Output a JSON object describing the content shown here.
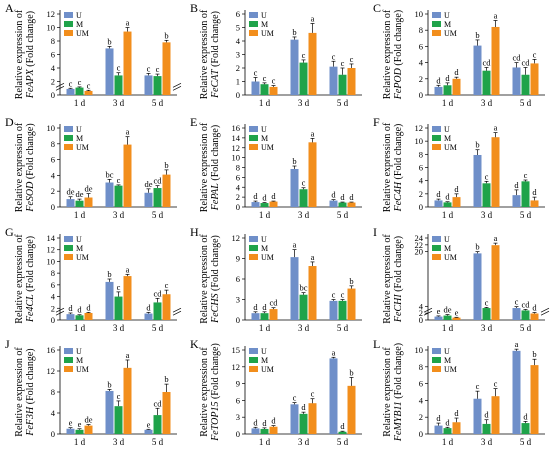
{
  "legend": [
    {
      "key": "U",
      "label": "U",
      "color": "#6f8fc9"
    },
    {
      "key": "M",
      "label": "M",
      "color": "#1fa34a"
    },
    {
      "key": "UM",
      "label": "UM",
      "color": "#f28e1c"
    }
  ],
  "chart_data": [
    {
      "panel": "A",
      "type": "bar",
      "gene": "FeAPX",
      "ylabel_prefix": "Relative expression of",
      "ylabel_suffix": "(Fold change)",
      "categories": [
        "1 d",
        "3 d",
        "5 d"
      ],
      "ylim": [
        0,
        12
      ],
      "yticks": [
        0,
        2,
        4,
        6,
        8,
        10,
        12
      ],
      "axis_break": true,
      "series": [
        {
          "name": "U",
          "values": [
            0.9,
            6.9,
            2.9
          ],
          "errors": [
            0.1,
            0.3,
            0.3
          ],
          "letters": [
            "c",
            "b",
            "c"
          ]
        },
        {
          "name": "M",
          "values": [
            1.1,
            2.9,
            2.8
          ],
          "errors": [
            0.1,
            0.4,
            0.3
          ],
          "letters": [
            "c",
            "c",
            "c"
          ]
        },
        {
          "name": "UM",
          "values": [
            0.6,
            9.4,
            7.8
          ],
          "errors": [
            0.1,
            0.6,
            0.3
          ],
          "letters": [
            "c",
            "a",
            "b"
          ]
        }
      ]
    },
    {
      "panel": "B",
      "type": "bar",
      "gene": "FeCAT",
      "ylabel_prefix": "Relative expression of",
      "ylabel_suffix": "(Fold change)",
      "categories": [
        "1 d",
        "3 d",
        "5 d"
      ],
      "ylim": [
        0,
        6
      ],
      "yticks": [
        0,
        1,
        2,
        3,
        4,
        5,
        6
      ],
      "axis_break": false,
      "series": [
        {
          "name": "U",
          "values": [
            1.0,
            4.1,
            2.1
          ],
          "errors": [
            0.3,
            0.2,
            0.4
          ],
          "letters": [
            "c",
            "b",
            "c"
          ]
        },
        {
          "name": "M",
          "values": [
            0.8,
            2.4,
            1.5
          ],
          "errors": [
            0.1,
            0.2,
            0.5
          ],
          "letters": [
            "c",
            "c",
            "c"
          ]
        },
        {
          "name": "UM",
          "values": [
            0.6,
            4.6,
            2.0
          ],
          "errors": [
            0.1,
            0.7,
            0.3
          ],
          "letters": [
            "c",
            "a",
            "c"
          ]
        }
      ]
    },
    {
      "panel": "C",
      "type": "bar",
      "gene": "FePOD",
      "ylabel_prefix": "Relative expression of",
      "ylabel_suffix": "(Fold change)",
      "categories": [
        "1 d",
        "3 d",
        "5 d"
      ],
      "ylim": [
        0,
        10
      ],
      "yticks": [
        0,
        2,
        4,
        6,
        8,
        10
      ],
      "axis_break": false,
      "series": [
        {
          "name": "U",
          "values": [
            1.0,
            6.1,
            3.4
          ],
          "errors": [
            0.2,
            0.7,
            0.6
          ],
          "letters": [
            "d",
            "b",
            "cd"
          ]
        },
        {
          "name": "M",
          "values": [
            1.2,
            3.0,
            2.5
          ],
          "errors": [
            0.3,
            0.4,
            0.9
          ],
          "letters": [
            "d",
            "cd",
            "cd"
          ]
        },
        {
          "name": "UM",
          "values": [
            2.0,
            8.4,
            3.9
          ],
          "errors": [
            0.2,
            0.8,
            0.5
          ],
          "letters": [
            "d",
            "a",
            "c"
          ]
        }
      ]
    },
    {
      "panel": "D",
      "type": "bar",
      "gene": "FeSOD",
      "ylabel_prefix": "Relative expression of",
      "ylabel_suffix": "(Fold change)",
      "categories": [
        "1 d",
        "3 d",
        "5 d"
      ],
      "ylim": [
        0,
        10
      ],
      "yticks": [
        0,
        2,
        4,
        6,
        8,
        10
      ],
      "axis_break": false,
      "series": [
        {
          "name": "U",
          "values": [
            1.0,
            3.1,
            1.8
          ],
          "errors": [
            0.3,
            0.4,
            0.5
          ],
          "letters": [
            "de",
            "bc",
            "de"
          ]
        },
        {
          "name": "M",
          "values": [
            0.8,
            2.7,
            2.4
          ],
          "errors": [
            0.2,
            0.1,
            0.3
          ],
          "letters": [
            "de",
            "c",
            "cd"
          ]
        },
        {
          "name": "UM",
          "values": [
            1.2,
            7.9,
            4.1
          ],
          "errors": [
            0.5,
            1.0,
            0.6
          ],
          "letters": [
            "de",
            "a",
            "b"
          ]
        }
      ]
    },
    {
      "panel": "E",
      "type": "bar",
      "gene": "FePAL",
      "ylabel_prefix": "Relative expression of",
      "ylabel_suffix": "(Fold change)",
      "categories": [
        "1 d",
        "3 d",
        "5 d"
      ],
      "ylim": [
        0,
        16
      ],
      "yticks": [
        0,
        2,
        4,
        6,
        8,
        10,
        12,
        14,
        16
      ],
      "axis_break": false,
      "series": [
        {
          "name": "U",
          "values": [
            1.0,
            7.7,
            1.3
          ],
          "errors": [
            0.2,
            0.6,
            0.2
          ],
          "letters": [
            "d",
            "b",
            "d"
          ]
        },
        {
          "name": "M",
          "values": [
            0.8,
            3.6,
            0.9
          ],
          "errors": [
            0.1,
            0.3,
            0.1
          ],
          "letters": [
            "d",
            "c",
            "d"
          ]
        },
        {
          "name": "UM",
          "values": [
            1.1,
            13.1,
            0.9
          ],
          "errors": [
            0.1,
            0.8,
            0.1
          ],
          "letters": [
            "d",
            "a",
            "d"
          ]
        }
      ]
    },
    {
      "panel": "F",
      "type": "bar",
      "gene": "FeC4H",
      "ylabel_prefix": "Relative expression of",
      "ylabel_suffix": "(Fold change)",
      "categories": [
        "1 d",
        "3 d",
        "5 d"
      ],
      "ylim": [
        0,
        12
      ],
      "yticks": [
        0,
        2,
        4,
        6,
        8,
        10,
        12
      ],
      "axis_break": false,
      "series": [
        {
          "name": "U",
          "values": [
            1.0,
            7.9,
            1.8
          ],
          "errors": [
            0.2,
            0.8,
            0.8
          ],
          "letters": [
            "d",
            "b",
            "d"
          ]
        },
        {
          "name": "M",
          "values": [
            0.7,
            3.6,
            3.9
          ],
          "errors": [
            0.1,
            0.3,
            0.2
          ],
          "letters": [
            "d",
            "c",
            "c"
          ]
        },
        {
          "name": "UM",
          "values": [
            1.5,
            10.6,
            1.0
          ],
          "errors": [
            0.5,
            0.7,
            0.5
          ],
          "letters": [
            "d",
            "a",
            "d"
          ]
        }
      ]
    },
    {
      "panel": "G",
      "type": "bar",
      "gene": "Fe4CL",
      "ylabel_prefix": "Relative expression of",
      "ylabel_suffix": "(Fold change)",
      "categories": [
        "1 d",
        "3 d",
        "5 d"
      ],
      "ylim": [
        0,
        14
      ],
      "yticks": [
        0,
        2,
        4,
        6,
        8,
        10,
        12,
        14
      ],
      "axis_break": true,
      "series": [
        {
          "name": "U",
          "values": [
            1.0,
            6.5,
            1.1
          ],
          "errors": [
            0.2,
            0.5,
            0.2
          ],
          "letters": [
            "d",
            "b",
            "d"
          ]
        },
        {
          "name": "M",
          "values": [
            0.8,
            4.0,
            3.0
          ],
          "errors": [
            0.1,
            0.8,
            0.7
          ],
          "letters": [
            "d",
            "c",
            "cd"
          ]
        },
        {
          "name": "UM",
          "values": [
            1.2,
            7.5,
            4.4
          ],
          "errors": [
            0.1,
            0.3,
            0.7
          ],
          "letters": [
            "d",
            "a",
            "c"
          ]
        }
      ]
    },
    {
      "panel": "H",
      "type": "bar",
      "gene": "FeCHS",
      "ylabel_prefix": "Relative expression of",
      "ylabel_suffix": "(Fold change)",
      "categories": [
        "1 d",
        "3 d",
        "5 d"
      ],
      "ylim": [
        0,
        12
      ],
      "yticks": [
        0,
        3,
        6,
        9,
        12
      ],
      "axis_break": false,
      "series": [
        {
          "name": "U",
          "values": [
            1.0,
            9.2,
            2.8
          ],
          "errors": [
            0.2,
            1.1,
            0.2
          ],
          "letters": [
            "d",
            "a",
            "c"
          ]
        },
        {
          "name": "M",
          "values": [
            1.0,
            3.7,
            2.8
          ],
          "errors": [
            0.2,
            0.3,
            0.2
          ],
          "letters": [
            "d",
            "bc",
            "c"
          ]
        },
        {
          "name": "UM",
          "values": [
            1.6,
            7.9,
            4.6
          ],
          "errors": [
            0.2,
            0.6,
            0.4
          ],
          "letters": [
            "cd",
            "a",
            "b"
          ]
        }
      ]
    },
    {
      "panel": "I",
      "type": "bar",
      "gene": "FeCHI",
      "ylabel_prefix": "Relative expression of",
      "ylabel_suffix": "(Fold change)",
      "categories": [
        "1 d",
        "3 d",
        "5 d"
      ],
      "ylim": [
        0,
        24
      ],
      "yticks": [
        0,
        2,
        4,
        20,
        22,
        24
      ],
      "axis_break": true,
      "series": [
        {
          "name": "U",
          "values": [
            1.0,
            19.5,
            3.5
          ],
          "errors": [
            0.2,
            0.5,
            0.4
          ],
          "letters": [
            "e",
            "b",
            "c"
          ]
        },
        {
          "name": "M",
          "values": [
            1.3,
            3.5,
            2.8
          ],
          "errors": [
            0.3,
            0.2,
            0.3
          ],
          "letters": [
            "de",
            "c",
            "cd"
          ]
        },
        {
          "name": "UM",
          "values": [
            0.7,
            21.9,
            1.9
          ],
          "errors": [
            0.1,
            0.6,
            0.3
          ],
          "letters": [
            "e",
            "a",
            "d"
          ]
        }
      ]
    },
    {
      "panel": "J",
      "type": "bar",
      "gene": "FeF3H",
      "ylabel_prefix": "Relative expression of",
      "ylabel_suffix": "(Fold change)",
      "categories": [
        "1 d",
        "3 d",
        "5 d"
      ],
      "ylim": [
        0,
        16
      ],
      "yticks": [
        0,
        4,
        8,
        12,
        16
      ],
      "axis_break": false,
      "series": [
        {
          "name": "U",
          "values": [
            1.0,
            8.2,
            0.8
          ],
          "errors": [
            0.2,
            0.3,
            0.1
          ],
          "letters": [
            "e",
            "b",
            "e"
          ]
        },
        {
          "name": "M",
          "values": [
            0.8,
            5.3,
            3.6
          ],
          "errors": [
            0.2,
            1.0,
            1.3
          ],
          "letters": [
            "e",
            "c",
            "cd"
          ]
        },
        {
          "name": "UM",
          "values": [
            1.6,
            12.6,
            8.0
          ],
          "errors": [
            0.2,
            1.5,
            1.5
          ],
          "letters": [
            "de",
            "a",
            "b"
          ]
        }
      ]
    },
    {
      "panel": "K",
      "type": "bar",
      "gene": "FeTOP15",
      "ylabel_prefix": "Relative expression of",
      "ylabel_suffix": "(Fold change)",
      "categories": [
        "1 d",
        "3 d",
        "5 d"
      ],
      "ylim": [
        0,
        15
      ],
      "yticks": [
        0,
        3,
        6,
        9,
        12,
        15
      ],
      "axis_break": false,
      "series": [
        {
          "name": "U",
          "values": [
            1.0,
            5.3,
            13.5
          ],
          "errors": [
            0.2,
            0.3,
            0.2
          ],
          "letters": [
            "d",
            "c",
            "a"
          ]
        },
        {
          "name": "M",
          "values": [
            0.9,
            3.6,
            0.4
          ],
          "errors": [
            0.2,
            0.3,
            0.1
          ],
          "letters": [
            "d",
            "d",
            "d"
          ]
        },
        {
          "name": "UM",
          "values": [
            1.3,
            5.5,
            8.6
          ],
          "errors": [
            0.2,
            0.8,
            1.5
          ],
          "letters": [
            "d",
            "c",
            "b"
          ]
        }
      ]
    },
    {
      "panel": "L",
      "type": "bar",
      "gene": "FeMYB11",
      "ylabel_prefix": "Relative expression of",
      "ylabel_suffix": "(Fold change)",
      "categories": [
        "1 d",
        "3 d",
        "5 d"
      ],
      "ylim": [
        0,
        10
      ],
      "yticks": [
        0,
        2,
        4,
        6,
        8,
        10
      ],
      "axis_break": false,
      "series": [
        {
          "name": "U",
          "values": [
            1.0,
            4.2,
            9.9
          ],
          "errors": [
            0.3,
            0.9,
            0.2
          ],
          "letters": [
            "d",
            "c",
            "a"
          ]
        },
        {
          "name": "M",
          "values": [
            0.7,
            1.2,
            1.3
          ],
          "errors": [
            0.1,
            0.5,
            0.2
          ],
          "letters": [
            "d",
            "d",
            "d"
          ]
        },
        {
          "name": "UM",
          "values": [
            1.4,
            4.5,
            8.2
          ],
          "errors": [
            0.5,
            0.9,
            0.7
          ],
          "letters": [
            "d",
            "c",
            "b"
          ]
        }
      ]
    }
  ]
}
